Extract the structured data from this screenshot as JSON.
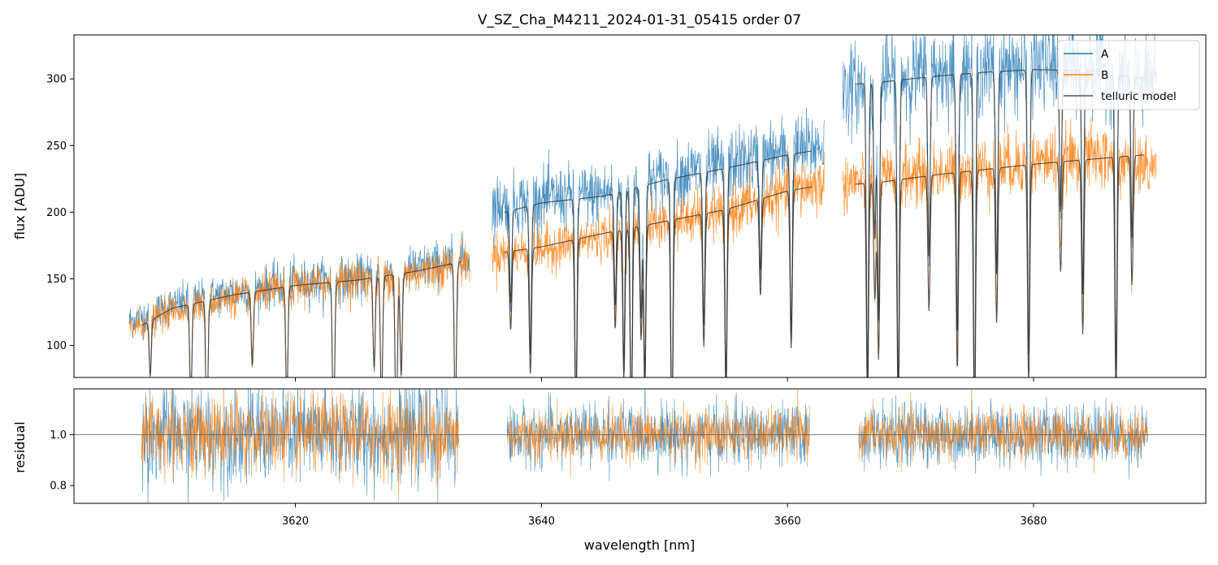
{
  "chart_data": [
    {
      "panel": "top",
      "type": "line",
      "title": "V_SZ_Cha_M4211_2024-01-31_05415  order 07",
      "xlabel": "",
      "ylabel": "flux [ADU]",
      "xlim": [
        3602,
        3694
      ],
      "ylim": [
        76,
        333
      ],
      "yticks": [
        "100",
        "150",
        "200",
        "250",
        "300"
      ],
      "ytick_values": [
        100,
        150,
        200,
        250,
        300
      ],
      "xtick_values": [
        3620,
        3640,
        3660,
        3680
      ],
      "legend_position": "upper right",
      "series": [
        {
          "name": "A",
          "color": "#1f77b4",
          "segments": [
            {
              "x_range": [
                3606.5,
                3634.2
              ],
              "continuum": [
                [
                  3606.5,
                  118
                ],
                [
                  3610,
                  130
                ],
                [
                  3615,
                  140
                ],
                [
                  3620,
                  147
                ],
                [
                  3625,
                  150
                ],
                [
                  3630,
                  158
                ],
                [
                  3634.2,
                  165
                ]
              ]
            },
            {
              "x_range": [
                3636.0,
                3663.0
              ],
              "continuum": [
                [
                  3636.0,
                  205
                ],
                [
                  3640,
                  210
                ],
                [
                  3645,
                  214
                ],
                [
                  3650,
                  226
                ],
                [
                  3655,
                  235
                ],
                [
                  3660,
                  245
                ],
                [
                  3663.0,
                  250
                ]
              ]
            },
            {
              "x_range": [
                3664.5,
                3690.0
              ],
              "continuum": [
                [
                  3664.5,
                  292
                ],
                [
                  3668,
                  300
                ],
                [
                  3672,
                  305
                ],
                [
                  3676,
                  308
                ],
                [
                  3680,
                  310
                ],
                [
                  3685,
                  310
                ],
                [
                  3690.0,
                  296
                ]
              ]
            }
          ]
        },
        {
          "name": "B",
          "color": "#ff7f0e",
          "segments": [
            {
              "x_range": [
                3606.5,
                3634.2
              ],
              "continuum": [
                [
                  3606.5,
                  112
                ],
                [
                  3610,
                  126
                ],
                [
                  3615,
                  136
                ],
                [
                  3620,
                  144
                ],
                [
                  3625,
                  150
                ],
                [
                  3630,
                  155
                ],
                [
                  3634.2,
                  163
                ]
              ]
            },
            {
              "x_range": [
                3636.0,
                3663.0
              ],
              "continuum": [
                [
                  3636.0,
                  168
                ],
                [
                  3640,
                  172
                ],
                [
                  3645,
                  182
                ],
                [
                  3650,
                  192
                ],
                [
                  3655,
                  200
                ],
                [
                  3660,
                  215
                ],
                [
                  3663.0,
                  222
                ]
              ]
            },
            {
              "x_range": [
                3664.5,
                3690.0
              ],
              "continuum": [
                [
                  3664.5,
                  222
                ],
                [
                  3668,
                  225
                ],
                [
                  3672,
                  230
                ],
                [
                  3676,
                  234
                ],
                [
                  3680,
                  238
                ],
                [
                  3685,
                  242
                ],
                [
                  3690.0,
                  232
                ]
              ]
            }
          ]
        },
        {
          "name": "telluric model",
          "color": "#333333",
          "segments": [
            {
              "x_range": [
                3607.5,
                3633.5
              ],
              "continuum": [
                [
                  3607.5,
                  115
                ],
                [
                  3610,
                  128
                ],
                [
                  3615,
                  138
                ],
                [
                  3620,
                  145
                ],
                [
                  3625,
                  149
                ],
                [
                  3630,
                  156
                ],
                [
                  3633.5,
                  163
                ]
              ]
            },
            {
              "x_range": [
                3637.0,
                3662.0
              ],
              "continuum": [
                [
                  3637.0,
                  200
                ],
                [
                  3640,
                  207
                ],
                [
                  3645,
                  212
                ],
                [
                  3650,
                  224
                ],
                [
                  3655,
                  233
                ],
                [
                  3660,
                  243
                ],
                [
                  3662.0,
                  246
                ]
              ]
            },
            {
              "x_range": [
                3637.0,
                3662.0
              ],
              "continuum": [
                [
                  3637.0,
                  170
                ],
                [
                  3640,
                  174
                ],
                [
                  3645,
                  184
                ],
                [
                  3650,
                  193
                ],
                [
                  3655,
                  202
                ],
                [
                  3660,
                  216
                ],
                [
                  3662.0,
                  219
                ]
              ]
            },
            {
              "x_range": [
                3665.5,
                3689.0
              ],
              "continuum": [
                [
                  3665.5,
                  296
                ],
                [
                  3668,
                  298
                ],
                [
                  3672,
                  302
                ],
                [
                  3676,
                  305
                ],
                [
                  3680,
                  307
                ],
                [
                  3685,
                  306
                ],
                [
                  3689.0,
                  300
                ]
              ]
            },
            {
              "x_range": [
                3665.5,
                3689.0
              ],
              "continuum": [
                [
                  3665.5,
                  221
                ],
                [
                  3668,
                  223
                ],
                [
                  3672,
                  228
                ],
                [
                  3676,
                  232
                ],
                [
                  3680,
                  236
                ],
                [
                  3685,
                  240
                ],
                [
                  3689.0,
                  243
                ]
              ]
            }
          ]
        }
      ],
      "absorption_lines": [
        3608.2,
        3611.5,
        3612.8,
        3616.5,
        3619.3,
        3623.1,
        3626.4,
        3627.0,
        3628.2,
        3628.6,
        3633.0,
        3637.5,
        3639.1,
        3642.8,
        3646.0,
        3646.7,
        3647.3,
        3648.1,
        3648.4,
        3650.6,
        3653.2,
        3655.0,
        3657.8,
        3660.3,
        3666.5,
        3667.1,
        3667.4,
        3669.0,
        3671.5,
        3673.8,
        3675.2,
        3677.0,
        3679.6,
        3682.2,
        3684.0,
        3686.7,
        3688.0
      ]
    },
    {
      "panel": "bottom",
      "type": "line",
      "xlabel": "wavelength [nm]",
      "ylabel": "residual",
      "xlim": [
        3602,
        3694
      ],
      "ylim": [
        0.73,
        1.18
      ],
      "yticks": [
        "0.8",
        "1.0"
      ],
      "ytick_values": [
        0.8,
        1.0
      ],
      "xticks": [
        "3620",
        "3640",
        "3660",
        "3680"
      ],
      "xtick_values": [
        3620,
        3640,
        3660,
        3680
      ],
      "reference_line": 1.0,
      "series": [
        {
          "name": "A",
          "color": "#1f77b4",
          "x_ranges": [
            [
              3607.5,
              3633.3
            ],
            [
              3637.2,
              3661.8
            ],
            [
              3665.8,
              3689.3
            ]
          ],
          "level": 1.0,
          "spread": 0.06
        },
        {
          "name": "B",
          "color": "#ff7f0e",
          "x_ranges": [
            [
              3607.5,
              3633.3
            ],
            [
              3637.2,
              3661.8
            ],
            [
              3665.8,
              3689.3
            ]
          ],
          "level": 1.0,
          "spread": 0.05
        }
      ]
    }
  ]
}
